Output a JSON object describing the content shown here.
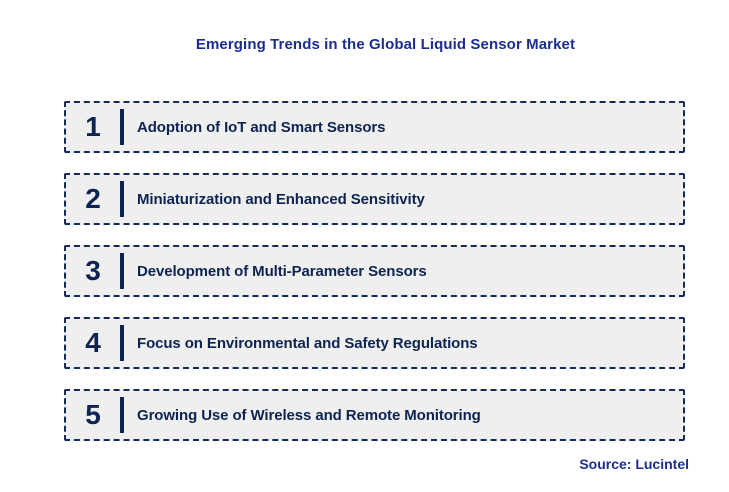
{
  "title": "Emerging Trends in the Global Liquid Sensor Market",
  "source": "Source: Lucintel",
  "colors": {
    "title_blue": "#1b2e90",
    "dark_navy_text": "#0d2451",
    "border_navy": "#122a5c",
    "box_background": "#efefef",
    "page_background": "#ffffff"
  },
  "trends": [
    {
      "number": "1",
      "label": "Adoption of IoT and Smart Sensors"
    },
    {
      "number": "2",
      "label": "Miniaturization and Enhanced Sensitivity"
    },
    {
      "number": "3",
      "label": "Development of Multi-Parameter Sensors"
    },
    {
      "number": "4",
      "label": "Focus on Environmental and Safety Regulations"
    },
    {
      "number": "5",
      "label": "Growing Use of Wireless and Remote Monitoring"
    }
  ]
}
